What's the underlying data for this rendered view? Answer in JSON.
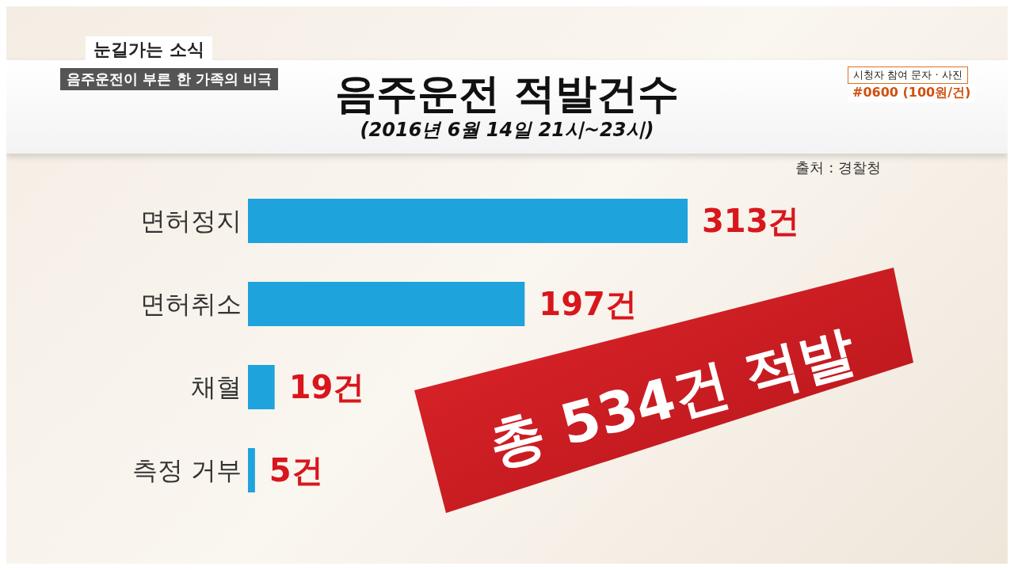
{
  "chart_data": {
    "type": "bar",
    "orientation": "horizontal",
    "title": "음주운전 적발건수",
    "subtitle": "(2016년 6월 14일 21시~23시)",
    "categories": [
      "면허정지",
      "면허취소",
      "채혈",
      "측정 거부"
    ],
    "values": [
      313,
      197,
      19,
      5
    ],
    "value_labels": [
      "313건",
      "197건",
      "19건",
      "5건"
    ],
    "color": "#1ea3dd",
    "annotations": [
      "출처 : 경찰청",
      "총 534건 적발",
      "눈길가는 소식",
      "음주운전이 부른 한 가족의 비극",
      "시청자 참여 문자 · 사진",
      "#0600 (100원/건)"
    ]
  }
}
